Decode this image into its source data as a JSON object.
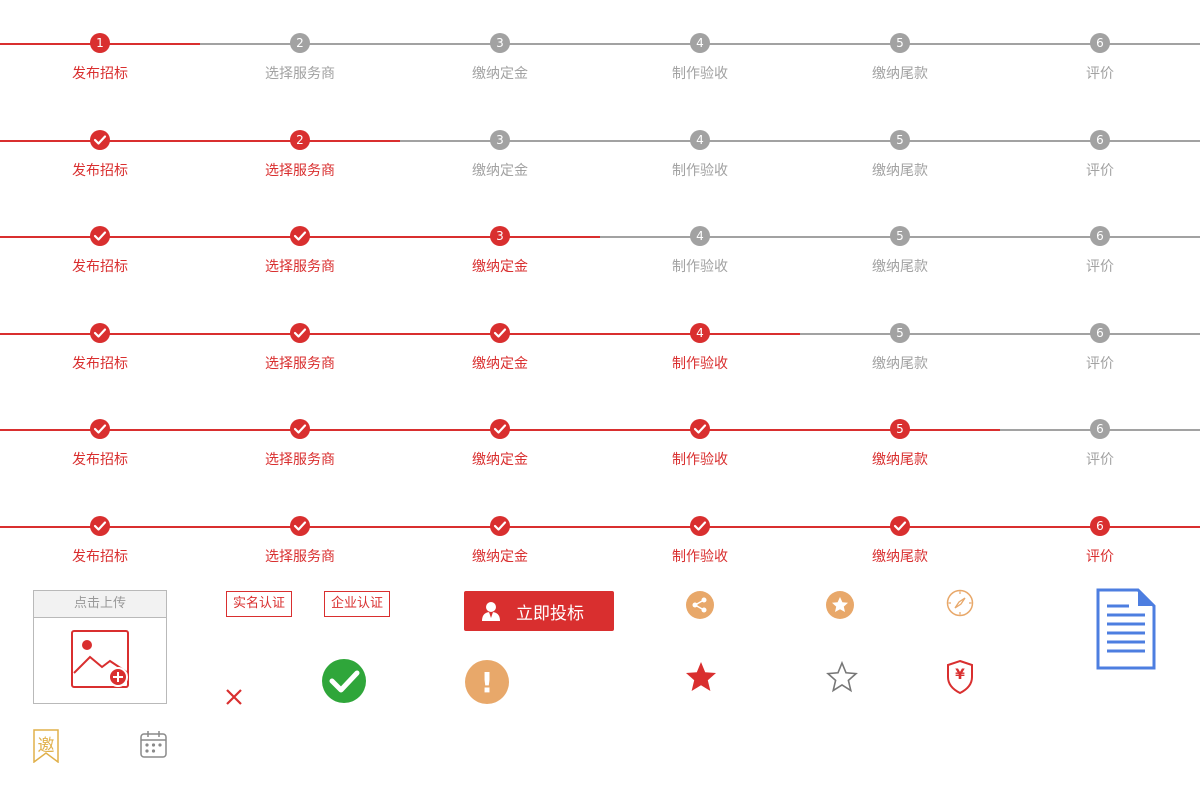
{
  "steps": {
    "labels": [
      "发布招标",
      "选择服务商",
      "缴纳定金",
      "制作验收",
      "缴纳尾款",
      "评价"
    ],
    "rows": [
      {
        "current": 1
      },
      {
        "current": 2
      },
      {
        "current": 3
      },
      {
        "current": 4
      },
      {
        "current": 5
      },
      {
        "current": 6
      }
    ],
    "colors": {
      "active": "#d92f2f",
      "inactive": "#a2a2a2"
    }
  },
  "upload": {
    "label": "点击上传",
    "icon": "image-add-icon"
  },
  "tags": {
    "real_name": "实名认证",
    "enterprise": "企业认证"
  },
  "bid_button": {
    "label": "立即投标",
    "icon": "person-icon"
  },
  "icons": {
    "share": "share-icon",
    "star_badge": "star-badge-icon",
    "compass": "compass-icon",
    "document": "document-icon",
    "close": "close-icon",
    "success": "check-circle-icon",
    "warning": "exclamation-circle-icon",
    "star_filled": "star-filled-icon",
    "star_outline": "star-outline-icon",
    "yuan_shield": "yuan-shield-icon",
    "invite": "invite-ribbon-icon",
    "calendar": "calendar-icon"
  },
  "invite_char": "邀",
  "yuan_char": "¥",
  "warning_char": "!"
}
